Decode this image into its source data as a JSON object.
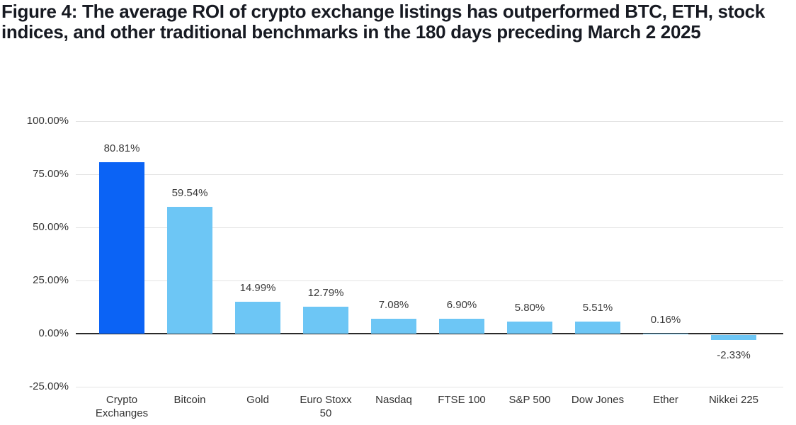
{
  "figure": {
    "title": "Figure 4: The average ROI of crypto exchange listings has outperformed BTC, ETH, stock indices, and other traditional benchmarks in the 180 days preceding March 2 2025"
  },
  "chart_data": {
    "type": "bar",
    "categories": [
      "Crypto Exchanges",
      "Bitcoin",
      "Gold",
      "Euro Stoxx 50",
      "Nasdaq",
      "FTSE 100",
      "S&P 500",
      "Dow Jones",
      "Ether",
      "Nikkei 225"
    ],
    "values": [
      80.81,
      59.54,
      14.99,
      12.79,
      7.08,
      6.9,
      5.8,
      5.51,
      0.16,
      -2.33
    ],
    "value_labels": [
      "80.81%",
      "59.54%",
      "14.99%",
      "12.79%",
      "7.08%",
      "6.90%",
      "5.80%",
      "5.51%",
      "0.16%",
      "-2.33%"
    ],
    "y_ticks": [
      100,
      75,
      50,
      25,
      0,
      -25
    ],
    "y_tick_labels": [
      "100.00%",
      "75.00%",
      "50.00%",
      "25.00%",
      "0.00%",
      "-25.00%"
    ],
    "ylim": [
      -25,
      100
    ],
    "grid": true,
    "legend_position": "none",
    "highlight_index": 0,
    "colors": {
      "highlight_bar": "#0b63f5",
      "bar": "#6dc6f5",
      "grid_line": "#e3e3e3",
      "zero_line": "#2b2b2b",
      "label_text": "#3a3a3a",
      "title_text": "#171a22"
    }
  }
}
